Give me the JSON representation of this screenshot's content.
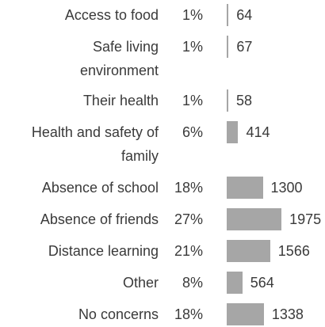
{
  "chart_data": {
    "type": "bar",
    "orientation": "horizontal",
    "categories": [
      "Access to food",
      "Safe living environment",
      "Their health",
      "Health and safety of family",
      "Absence of school",
      "Absence of friends",
      "Distance learning",
      "Other",
      "No concerns"
    ],
    "category_display": [
      "Access to food",
      "Safe living\nenvironment",
      "Their health",
      "Health and safety of\nfamily",
      "Absence of school",
      "Absence of friends",
      "Distance learning",
      "Other",
      "No concerns"
    ],
    "percent_labels": [
      "1%",
      "1%",
      "1%",
      "6%",
      "18%",
      "27%",
      "21%",
      "8%",
      "18%"
    ],
    "values": [
      64,
      67,
      58,
      414,
      1300,
      1975,
      1566,
      564,
      1338
    ],
    "xlim": [
      0,
      2000
    ],
    "grid": false,
    "legend": "none",
    "bar_color": "#a6a6a6",
    "text_color": "#3a3a3a"
  }
}
